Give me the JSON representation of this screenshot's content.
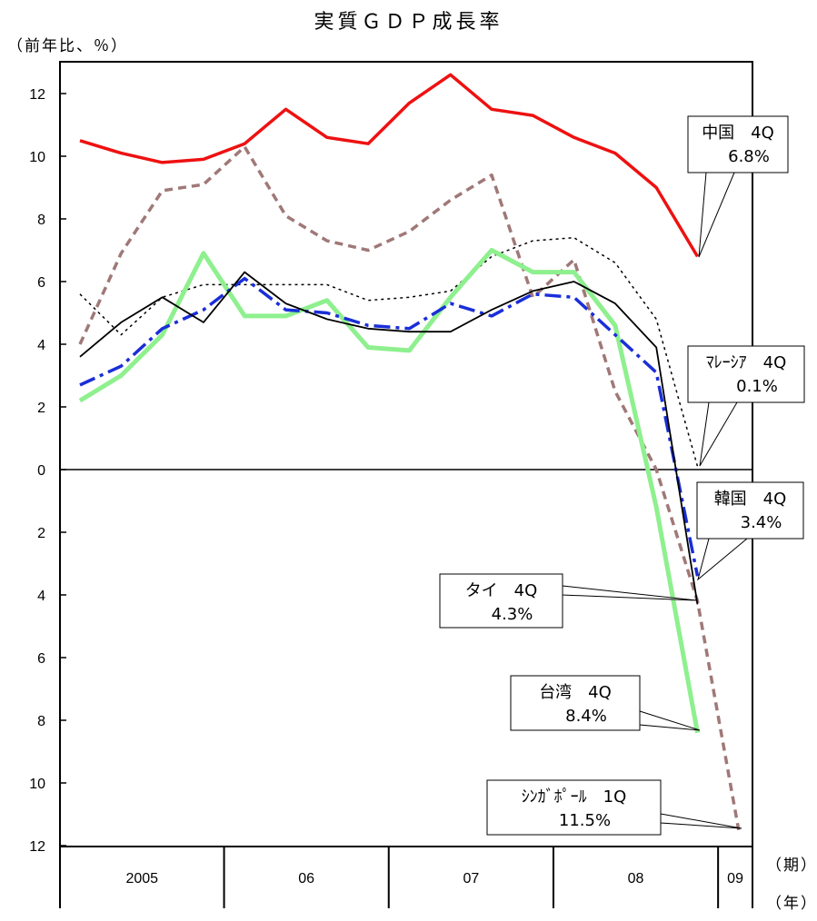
{
  "chart_data": {
    "type": "line",
    "title": "実質ＧＤＰ成長率",
    "ylabel": "（前年比、％）",
    "x_period_unit": "（期）",
    "x_year_unit": "（年）",
    "ylim": [
      -12,
      13
    ],
    "y_ticks": [
      12,
      10,
      8,
      6,
      4,
      2,
      0,
      -2,
      -4,
      -6,
      -8,
      -10,
      -12
    ],
    "y_tick_labels": [
      "12",
      "10",
      "8",
      "6",
      "4",
      "2",
      "0",
      "2",
      "4",
      "6",
      "8",
      "10",
      "12"
    ],
    "x": [
      "2005 1Q",
      "2005 2Q",
      "2005 3Q",
      "2005 4Q",
      "2006 1Q",
      "2006 2Q",
      "2006 3Q",
      "2006 4Q",
      "2007 1Q",
      "2007 2Q",
      "2007 3Q",
      "2007 4Q",
      "2008 1Q",
      "2008 2Q",
      "2008 3Q",
      "2008 4Q",
      "2009 1Q"
    ],
    "year_groups": [
      {
        "label": "2005",
        "quarters": 4
      },
      {
        "label": "06",
        "quarters": 4
      },
      {
        "label": "07",
        "quarters": 4
      },
      {
        "label": "08",
        "quarters": 4
      },
      {
        "label": "09",
        "quarters": 1
      }
    ],
    "series": [
      {
        "name": "中国",
        "color": "#ee1111",
        "style": "solid-thick",
        "values": [
          10.5,
          10.1,
          9.8,
          9.9,
          10.4,
          11.5,
          10.6,
          10.4,
          11.7,
          12.6,
          11.5,
          11.3,
          10.6,
          10.1,
          9.0,
          6.8,
          null
        ]
      },
      {
        "name": "マレーシア",
        "color": "#000000",
        "style": "dotted",
        "values": [
          5.6,
          4.3,
          5.5,
          5.9,
          5.9,
          5.9,
          5.9,
          5.4,
          5.5,
          5.7,
          6.8,
          7.3,
          7.4,
          6.6,
          4.8,
          0.1,
          null
        ]
      },
      {
        "name": "韓国",
        "color": "#1a2ed8",
        "style": "dashdot",
        "values": [
          2.7,
          3.3,
          4.5,
          5.1,
          6.1,
          5.1,
          5.0,
          4.6,
          4.5,
          5.3,
          4.9,
          5.6,
          5.5,
          4.3,
          3.1,
          -3.4,
          null
        ]
      },
      {
        "name": "タイ",
        "color": "#000000",
        "style": "solid-thin",
        "values": [
          3.6,
          4.7,
          5.5,
          4.7,
          6.3,
          5.3,
          4.8,
          4.5,
          4.4,
          4.4,
          5.1,
          5.7,
          6.0,
          5.3,
          3.9,
          -4.3,
          null
        ]
      },
      {
        "name": "台湾",
        "color": "#8ef08e",
        "style": "solid-thick",
        "values": [
          2.2,
          3.0,
          4.3,
          6.9,
          4.9,
          4.9,
          5.4,
          3.9,
          3.8,
          5.5,
          7.0,
          6.3,
          6.3,
          4.6,
          -1.2,
          -8.4,
          null
        ]
      },
      {
        "name": "シンガポール",
        "color": "#a07878",
        "style": "dashed",
        "values": [
          4.0,
          6.9,
          8.9,
          9.1,
          10.3,
          8.1,
          7.3,
          7.0,
          7.6,
          8.6,
          9.4,
          5.5,
          6.7,
          2.5,
          0.0,
          -4.2,
          -11.5
        ]
      }
    ],
    "annotations": [
      {
        "series": "中国",
        "line1": "中国　4Q",
        "line2": "6.8%"
      },
      {
        "series": "マレーシア",
        "line1": "ﾏﾚｰｼｱ　4Q",
        "line2": "0.1%"
      },
      {
        "series": "韓国",
        "line1": "韓国　4Q",
        "line2": "3.4%"
      },
      {
        "series": "タイ",
        "line1": "タイ　4Q",
        "line2": "4.3%"
      },
      {
        "series": "台湾",
        "line1": "台湾　4Q",
        "line2": "8.4%"
      },
      {
        "series": "シンガポール",
        "line1": "ｼﾝｶﾞﾎﾟｰﾙ　1Q",
        "line2": "11.5%"
      }
    ]
  }
}
